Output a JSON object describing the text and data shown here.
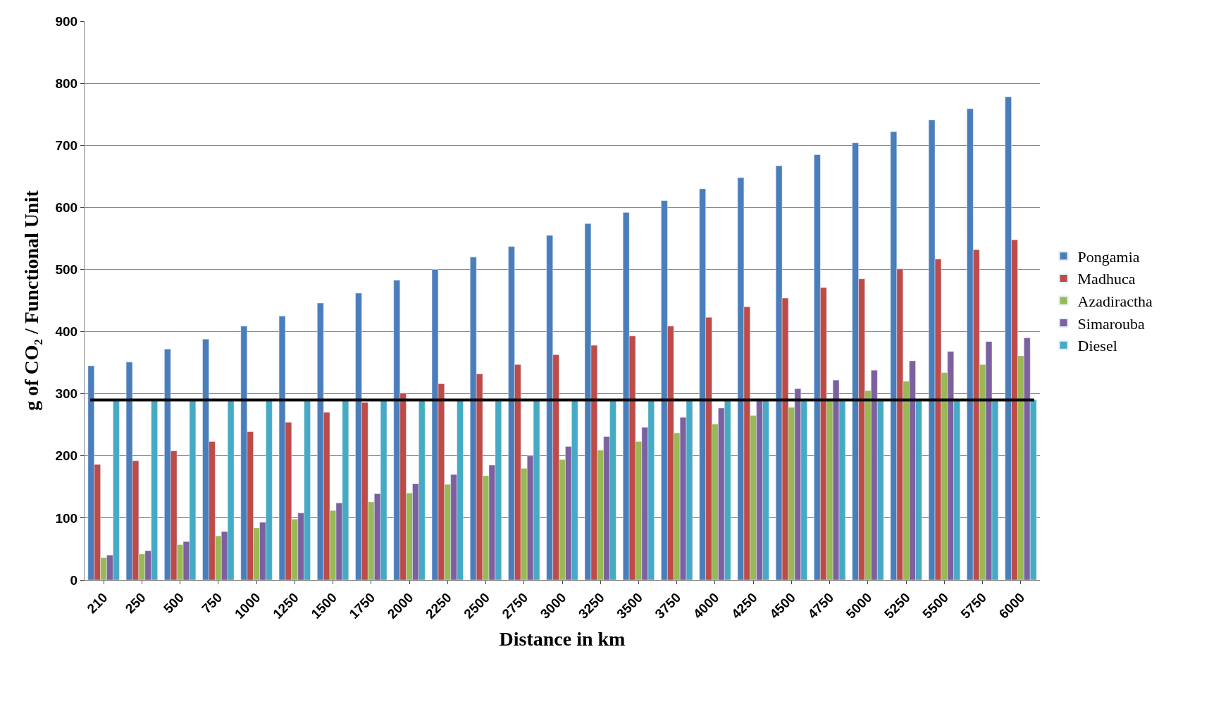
{
  "chart_data": {
    "type": "bar",
    "xlabel": "Distance in km",
    "ylabel": "g of CO₂ / Functional Unit",
    "categories": [
      "210",
      "250",
      "500",
      "750",
      "1000",
      "1250",
      "1500",
      "1750",
      "2000",
      "2250",
      "2500",
      "2750",
      "3000",
      "3250",
      "3500",
      "3750",
      "4000",
      "4250",
      "4500",
      "4750",
      "5000",
      "5250",
      "5500",
      "5750",
      "6000"
    ],
    "series": [
      {
        "name": "Pongamia",
        "color": "#4a7ebb",
        "values": [
          345,
          351,
          372,
          388,
          409,
          425,
          446,
          462,
          483,
          500,
          520,
          537,
          555,
          574,
          592,
          611,
          630,
          648,
          667,
          685,
          704,
          722,
          741,
          759,
          778
        ]
      },
      {
        "name": "Madhuca",
        "color": "#be4b48",
        "values": [
          186,
          192,
          208,
          223,
          239,
          254,
          270,
          286,
          301,
          316,
          332,
          347,
          363,
          378,
          393,
          409,
          423,
          440,
          454,
          471,
          485,
          501,
          517,
          532,
          548
        ]
      },
      {
        "name": "Azadiractha",
        "color": "#98b954",
        "values": [
          36,
          42,
          57,
          71,
          84,
          98,
          112,
          126,
          140,
          154,
          168,
          180,
          194,
          209,
          223,
          237,
          251,
          265,
          278,
          292,
          305,
          320,
          334,
          347,
          361
        ]
      },
      {
        "name": "Simarouba",
        "color": "#7d60a0",
        "values": [
          40,
          47,
          62,
          78,
          93,
          108,
          124,
          139,
          155,
          170,
          185,
          200,
          215,
          231,
          246,
          262,
          277,
          292,
          308,
          322,
          338,
          353,
          368,
          384,
          390
        ]
      },
      {
        "name": "Diesel",
        "color": "#46aac5",
        "values": [
          290,
          290,
          290,
          290,
          290,
          290,
          290,
          290,
          290,
          290,
          290,
          290,
          290,
          290,
          290,
          290,
          290,
          290,
          290,
          290,
          290,
          290,
          290,
          290,
          290
        ]
      }
    ],
    "ylim": [
      0,
      900
    ],
    "yticks": [
      0,
      100,
      200,
      300,
      400,
      500,
      600,
      700,
      800,
      900
    ],
    "ref_lines": [
      {
        "axis": "y",
        "value": 290,
        "color": "#000000"
      }
    ],
    "grid": "y",
    "legend": "right"
  }
}
